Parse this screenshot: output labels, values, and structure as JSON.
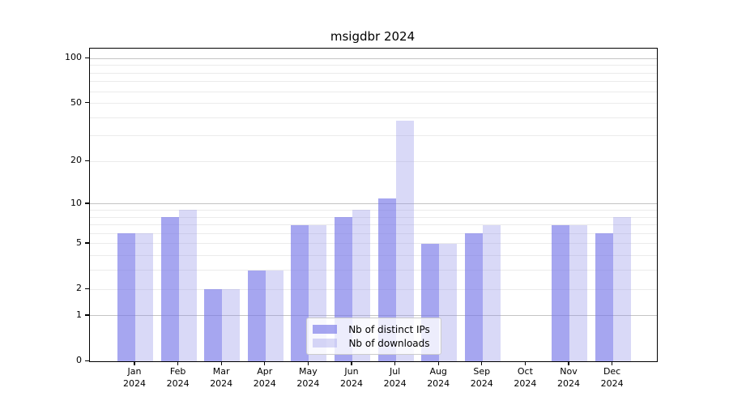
{
  "chart_data": {
    "type": "bar",
    "title": "msigdbr 2024",
    "categories": [
      {
        "month": "Jan",
        "year": "2024"
      },
      {
        "month": "Feb",
        "year": "2024"
      },
      {
        "month": "Mar",
        "year": "2024"
      },
      {
        "month": "Apr",
        "year": "2024"
      },
      {
        "month": "May",
        "year": "2024"
      },
      {
        "month": "Jun",
        "year": "2024"
      },
      {
        "month": "Jul",
        "year": "2024"
      },
      {
        "month": "Aug",
        "year": "2024"
      },
      {
        "month": "Sep",
        "year": "2024"
      },
      {
        "month": "Oct",
        "year": "2024"
      },
      {
        "month": "Nov",
        "year": "2024"
      },
      {
        "month": "Dec",
        "year": "2024"
      }
    ],
    "series": [
      {
        "name": "Nb of distinct IPs",
        "color": "#a6a6ef",
        "fill": "rgba(118,118,232,0.65)",
        "values": [
          6,
          8,
          2,
          3,
          7,
          8,
          11,
          5,
          6,
          0,
          7,
          6
        ]
      },
      {
        "name": "Nb of downloads",
        "color": "#d9d9f7",
        "fill": "rgba(146,146,232,0.35)",
        "values": [
          6,
          9,
          2,
          3,
          7,
          9,
          38,
          5,
          7,
          0,
          7,
          8
        ]
      }
    ],
    "yscale": "log1p",
    "ylim": [
      0,
      116
    ],
    "yticks": [
      0,
      1,
      2,
      5,
      10,
      20,
      50,
      100
    ],
    "yticklabels": [
      "0",
      "1",
      "2",
      "5",
      "10",
      "20",
      "50",
      "100"
    ],
    "major_gridlines": [
      1,
      10,
      100
    ],
    "minor_gridlines": [
      2,
      3,
      4,
      5,
      6,
      7,
      8,
      9,
      20,
      30,
      40,
      50,
      60,
      70,
      80,
      90
    ],
    "grid": true,
    "legend_position": "lower center"
  },
  "colors": {
    "grid_major": "#c4c4c4",
    "grid_minor": "#ebebeb",
    "spine": "#000000",
    "background": "#ffffff"
  }
}
